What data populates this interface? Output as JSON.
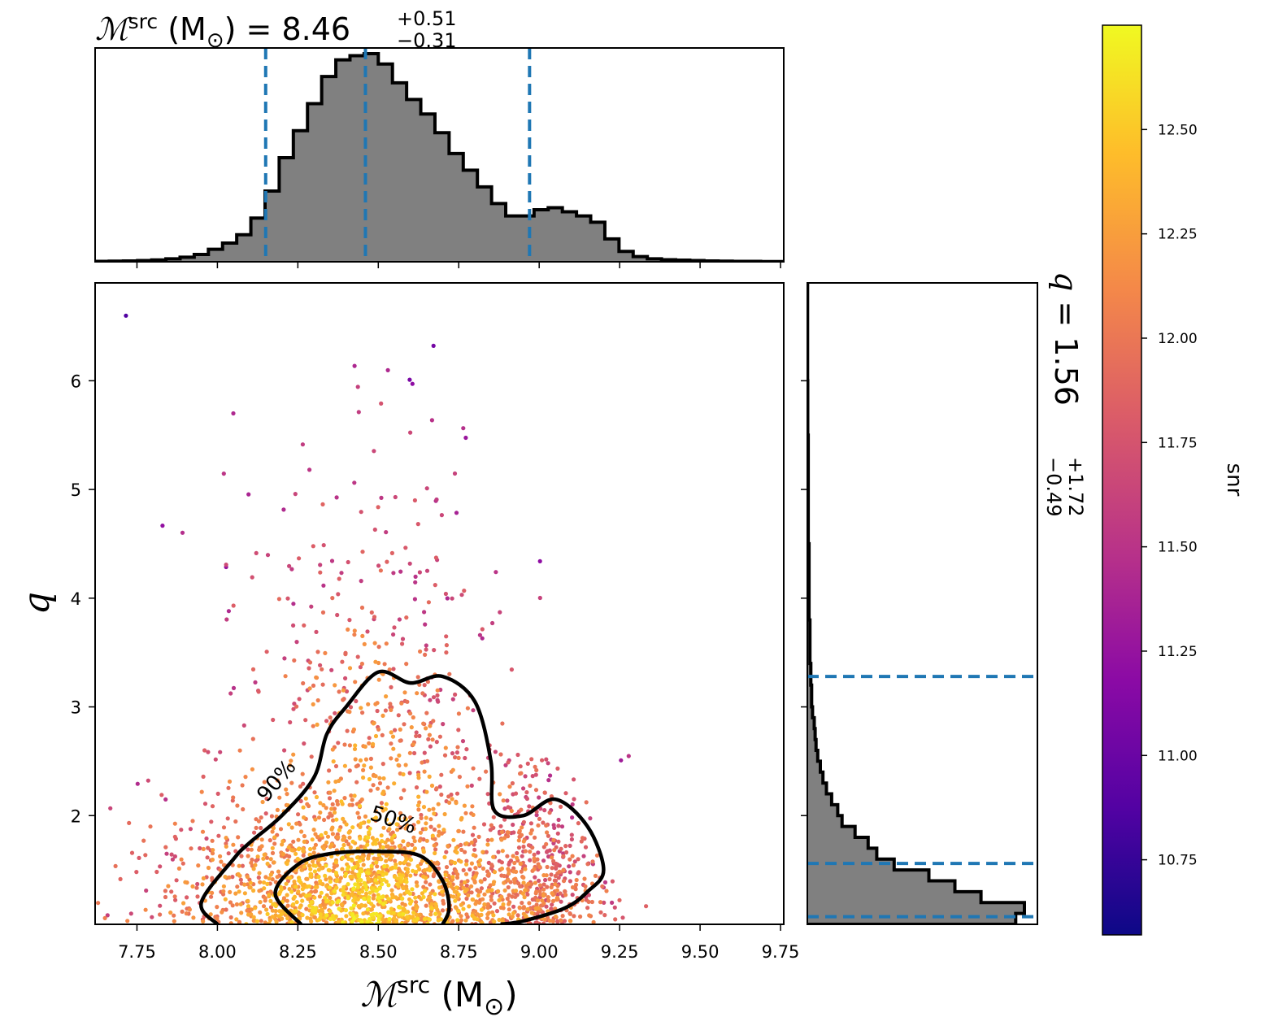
{
  "chart_data": [
    {
      "panel": "marginal-top",
      "type": "histogram",
      "title": {
        "symbol": "ℳ",
        "sup": "src",
        "unit": " (M",
        "unit_sub": "⊙",
        "unit_close": ")",
        "eq": " = 8.46",
        "err_plus": "+0.51",
        "err_minus": "−0.31"
      },
      "xlim": [
        7.62,
        9.76
      ],
      "bins": [
        7.62,
        7.664,
        7.708,
        7.752,
        7.796,
        7.84,
        7.884,
        7.928,
        7.972,
        8.016,
        8.06,
        8.104,
        8.148,
        8.192,
        8.236,
        8.28,
        8.324,
        8.368,
        8.412,
        8.456,
        8.5,
        8.544,
        8.588,
        8.632,
        8.676,
        8.72,
        8.764,
        8.808,
        8.852,
        8.896,
        8.94,
        8.984,
        9.028,
        9.072,
        9.116,
        9.16,
        9.204,
        9.248,
        9.292,
        9.336,
        9.38,
        9.424,
        9.468,
        9.512,
        9.556,
        9.6,
        9.644,
        9.688,
        9.732,
        9.76
      ],
      "density": [
        0.002,
        0.003,
        0.004,
        0.006,
        0.009,
        0.014,
        0.022,
        0.035,
        0.06,
        0.09,
        0.13,
        0.21,
        0.34,
        0.5,
        0.63,
        0.76,
        0.89,
        0.97,
        0.99,
        1.0,
        0.95,
        0.86,
        0.78,
        0.71,
        0.62,
        0.52,
        0.44,
        0.36,
        0.28,
        0.22,
        0.22,
        0.25,
        0.26,
        0.24,
        0.22,
        0.19,
        0.11,
        0.05,
        0.025,
        0.014,
        0.01,
        0.008,
        0.006,
        0.004,
        0.003,
        0.002,
        0.002,
        0.001,
        0.001
      ],
      "quantile_lines": [
        8.15,
        8.46,
        8.97
      ],
      "color": "#808080",
      "line_color": "#1f77b4"
    },
    {
      "panel": "joint",
      "type": "scatter",
      "xlabel": {
        "symbol": "ℳ",
        "sup": "src",
        "unit": " (M",
        "unit_sub": "⊙",
        "unit_close": ")"
      },
      "ylabel": "q",
      "xlim": [
        7.62,
        9.76
      ],
      "ylim": [
        1.0,
        6.9
      ],
      "xticks": [
        "7.75",
        "8.00",
        "8.25",
        "8.50",
        "8.75",
        "9.00",
        "9.25",
        "9.50",
        "9.75"
      ],
      "yticks": [
        "2",
        "3",
        "4",
        "5",
        "6"
      ],
      "color_variable": "snr",
      "colormap": "plasma",
      "contours": [
        {
          "label": "90%",
          "points": [
            [
              8.0,
              1.0
            ],
            [
              7.95,
              1.2
            ],
            [
              8.05,
              1.6
            ],
            [
              8.1,
              1.75
            ],
            [
              8.2,
              2.0
            ],
            [
              8.3,
              2.35
            ],
            [
              8.34,
              2.75
            ],
            [
              8.4,
              3.0
            ],
            [
              8.5,
              3.32
            ],
            [
              8.6,
              3.22
            ],
            [
              8.7,
              3.28
            ],
            [
              8.8,
              3.05
            ],
            [
              8.85,
              2.5
            ],
            [
              8.86,
              2.05
            ],
            [
              8.95,
              2.0
            ],
            [
              9.05,
              2.15
            ],
            [
              9.15,
              1.9
            ],
            [
              9.2,
              1.5
            ],
            [
              9.15,
              1.3
            ],
            [
              9.08,
              1.15
            ],
            [
              8.95,
              1.03
            ],
            [
              8.88,
              1.0
            ]
          ]
        },
        {
          "label": "50%",
          "points": [
            [
              8.26,
              1.0
            ],
            [
              8.18,
              1.28
            ],
            [
              8.25,
              1.55
            ],
            [
              8.35,
              1.65
            ],
            [
              8.5,
              1.67
            ],
            [
              8.63,
              1.63
            ],
            [
              8.7,
              1.4
            ],
            [
              8.72,
              1.15
            ],
            [
              8.7,
              1.0
            ]
          ]
        }
      ],
      "contour_labels": [
        {
          "text": "90%",
          "x": 8.2,
          "y": 2.28,
          "angle": -50
        },
        {
          "text": "50%",
          "x": 8.54,
          "y": 1.9,
          "angle": 18
        }
      ]
    },
    {
      "panel": "marginal-right",
      "type": "histogram",
      "title": {
        "symbol": "q",
        "eq": " = 1.56",
        "err_plus": "+1.72",
        "err_minus": "−0.49"
      },
      "ylim": [
        1.0,
        6.9
      ],
      "bins": [
        1.0,
        1.1,
        1.2,
        1.3,
        1.4,
        1.5,
        1.6,
        1.7,
        1.8,
        1.9,
        2.0,
        2.1,
        2.2,
        2.3,
        2.4,
        2.5,
        2.6,
        2.7,
        2.8,
        2.9,
        3.0,
        3.2,
        3.4,
        3.6,
        3.8,
        4.0,
        4.5,
        5.0,
        5.5,
        6.0,
        6.9
      ],
      "density": [
        0.24,
        0.25,
        0.2,
        0.17,
        0.14,
        0.1,
        0.08,
        0.07,
        0.055,
        0.04,
        0.035,
        0.028,
        0.022,
        0.018,
        0.015,
        0.012,
        0.01,
        0.009,
        0.008,
        0.006,
        0.005,
        0.004,
        0.003,
        0.003,
        0.002,
        0.002,
        0.001,
        0.001,
        0.0005,
        0.0003
      ],
      "xmax": 0.265,
      "quantile_lines": [
        1.07,
        1.56,
        3.28
      ],
      "color": "#808080",
      "line_color": "#1f77b4"
    },
    {
      "panel": "colorbar",
      "type": "colorbar",
      "label": "snr",
      "range": [
        10.57,
        12.75
      ],
      "ticks": [
        "10.75",
        "11.00",
        "11.25",
        "11.50",
        "11.75",
        "12.00",
        "12.25",
        "12.50"
      ],
      "colormap_stops": [
        "#0d0887",
        "#5302a3",
        "#8b0aa5",
        "#b83289",
        "#db5c68",
        "#f48849",
        "#febd2a",
        "#f0f921"
      ]
    }
  ]
}
